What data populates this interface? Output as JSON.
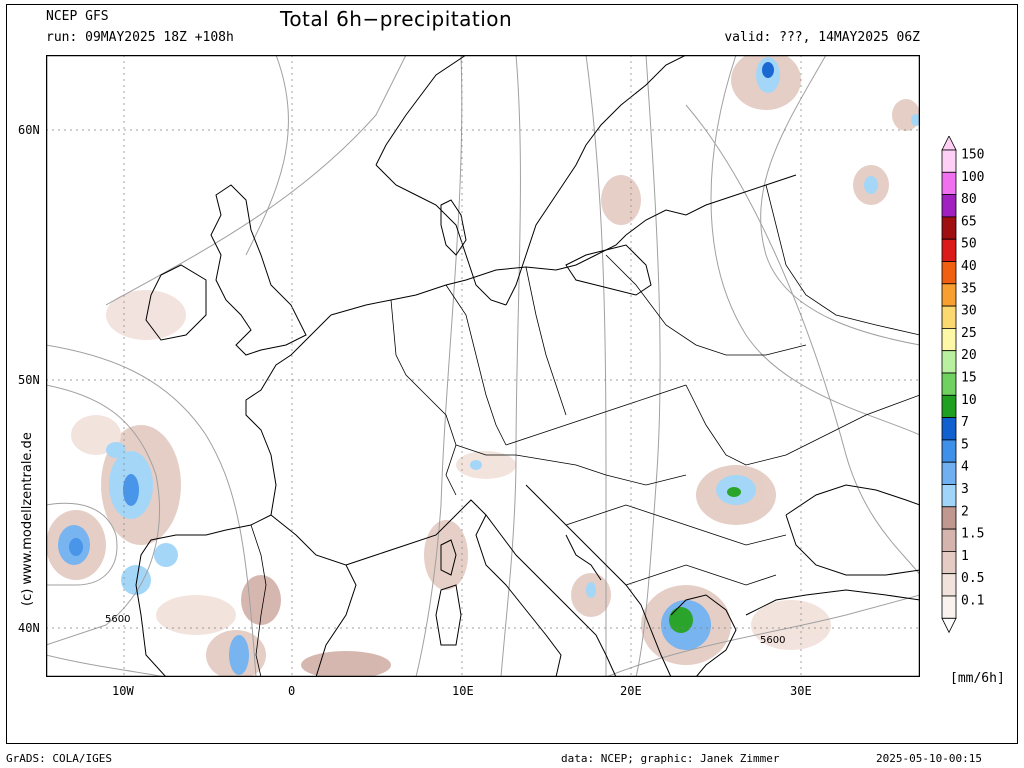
{
  "header": {
    "model": "NCEP GFS",
    "run": "run: 09MAY2025 18Z +108h",
    "title": "Total 6h−precipitation",
    "valid": "valid: ???, 14MAY2025 06Z"
  },
  "map": {
    "lat_labels": [
      "60N",
      "50N",
      "40N"
    ],
    "lon_labels": [
      "10W",
      "0",
      "10E",
      "20E",
      "30E"
    ],
    "isobar_labels": [
      "5600",
      "5600"
    ],
    "watermark": "(c)  www.modellzentrale.de"
  },
  "colorbar": {
    "unit": "[mm/6h]",
    "levels": [
      {
        "label": "150",
        "color": "#ffd0f5"
      },
      {
        "label": "100",
        "color": "#f070f0"
      },
      {
        "label": "80",
        "color": "#a020c0"
      },
      {
        "label": "65",
        "color": "#a01010"
      },
      {
        "label": "50",
        "color": "#dc1a1a"
      },
      {
        "label": "40",
        "color": "#f06010"
      },
      {
        "label": "35",
        "color": "#f7a030"
      },
      {
        "label": "30",
        "color": "#fbd870"
      },
      {
        "label": "25",
        "color": "#fdf7a8"
      },
      {
        "label": "20",
        "color": "#b8f0a0"
      },
      {
        "label": "15",
        "color": "#70d060"
      },
      {
        "label": "10",
        "color": "#20a020"
      },
      {
        "label": "7",
        "color": "#1060d0"
      },
      {
        "label": "5",
        "color": "#3f90e8"
      },
      {
        "label": "4",
        "color": "#70b0f0"
      },
      {
        "label": "3",
        "color": "#a0d4f8"
      },
      {
        "label": "2",
        "color": "#c09890"
      },
      {
        "label": "1.5",
        "color": "#d4b4ac"
      },
      {
        "label": "1",
        "color": "#e4ccc4"
      },
      {
        "label": "0.5",
        "color": "#f2e2dc"
      },
      {
        "label": "0.1",
        "color": "#faf2ee"
      }
    ]
  },
  "footer": {
    "left": "GrADS: COLA/IGES",
    "center": "data: NCEP; graphic: Janek Zimmer",
    "right": "2025-05-10-00:15"
  }
}
